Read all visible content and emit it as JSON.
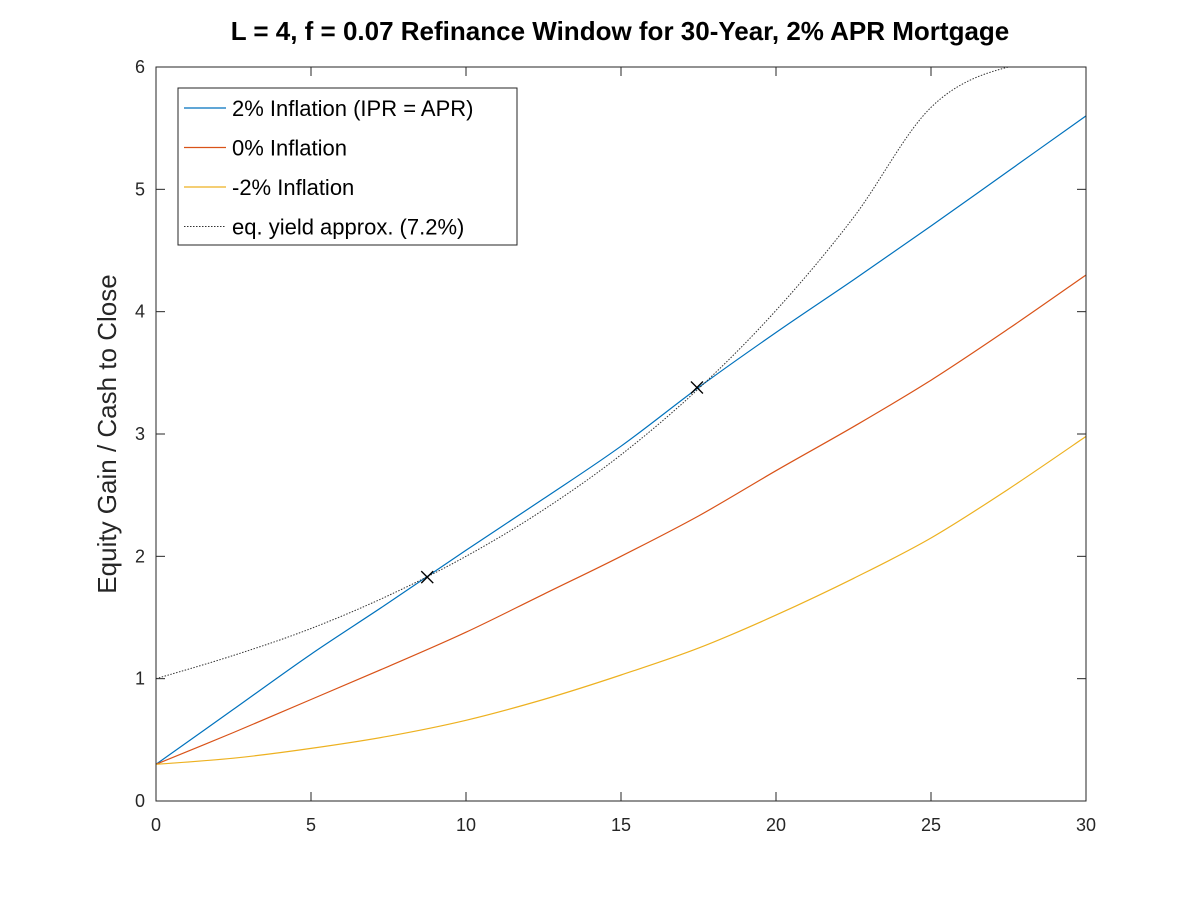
{
  "chart_data": {
    "type": "line",
    "title": "L = 4, f = 0.07 Refinance Window for 30-Year, 2% APR Mortgage",
    "xlabel": "",
    "ylabel": "Equity Gain / Cash to Close",
    "xlim": [
      0,
      30
    ],
    "ylim": [
      0,
      6
    ],
    "xticks": [
      0,
      5,
      10,
      15,
      20,
      25,
      30
    ],
    "yticks": [
      0,
      1,
      2,
      3,
      4,
      5,
      6
    ],
    "grid": false,
    "legend_position": "top-left",
    "x": [
      0,
      2.5,
      5,
      7.5,
      10,
      12.5,
      15,
      17.5,
      20,
      22.5,
      25,
      27.5,
      30
    ],
    "series": [
      {
        "name": "2% Inflation (IPR = APR)",
        "color": "#0072BD",
        "style": "solid",
        "values": [
          0.3,
          0.75,
          1.2,
          1.62,
          2.05,
          2.47,
          2.9,
          3.38,
          3.83,
          4.26,
          4.7,
          5.15,
          5.6
        ]
      },
      {
        "name": "0% Inflation",
        "color": "#D95319",
        "style": "solid",
        "values": [
          0.3,
          0.56,
          0.83,
          1.1,
          1.38,
          1.69,
          2.0,
          2.33,
          2.7,
          3.06,
          3.44,
          3.86,
          4.3
        ]
      },
      {
        "name": "-2% Inflation",
        "color": "#EDB120",
        "style": "solid",
        "values": [
          0.3,
          0.35,
          0.43,
          0.53,
          0.66,
          0.83,
          1.03,
          1.25,
          1.52,
          1.82,
          2.15,
          2.55,
          2.98
        ]
      },
      {
        "name": "eq. yield approx. (7.2%)",
        "color": "#333333",
        "style": "dotted",
        "values": [
          1.0,
          1.19,
          1.41,
          1.68,
          2.0,
          2.38,
          2.83,
          3.37,
          4.01,
          4.77,
          5.67,
          6.0,
          6.0
        ]
      }
    ],
    "markers": [
      {
        "x": 8.75,
        "y": 1.83,
        "symbol": "x"
      },
      {
        "x": 17.45,
        "y": 3.38,
        "symbol": "x"
      }
    ]
  }
}
